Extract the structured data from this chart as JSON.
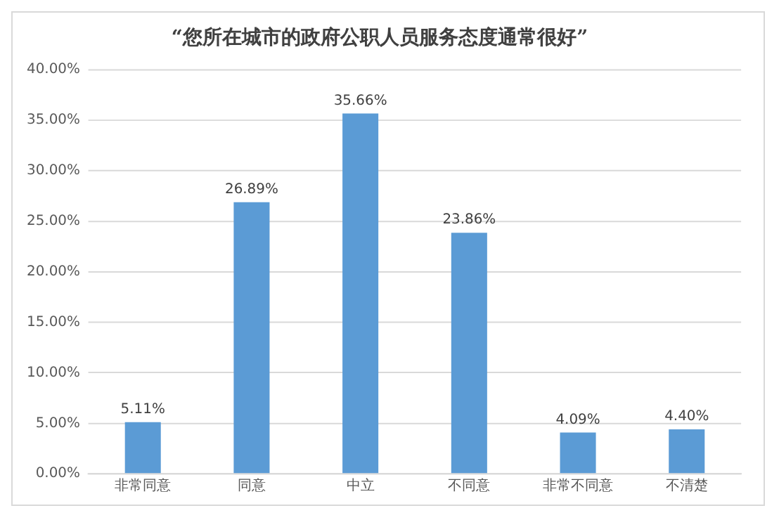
{
  "chart_data": {
    "type": "bar",
    "title": "“您所在城市的政府公职人员服务态度通常很好”",
    "categories": [
      "非常同意",
      "同意",
      "中立",
      "不同意",
      "非常不同意",
      "不清楚"
    ],
    "values": [
      5.11,
      26.89,
      35.66,
      23.86,
      4.09,
      4.4
    ],
    "value_labels": [
      "5.11%",
      "26.89%",
      "35.66%",
      "23.86%",
      "4.09%",
      "4.40%"
    ],
    "color": "#5b9bd5",
    "ylim": [
      0,
      40
    ],
    "yticks": [
      {
        "value": 0,
        "label": "0.00%"
      },
      {
        "value": 5,
        "label": "5.00%"
      },
      {
        "value": 10,
        "label": "10.00%"
      },
      {
        "value": 15,
        "label": "15.00%"
      },
      {
        "value": 20,
        "label": "20.00%"
      },
      {
        "value": 25,
        "label": "25.00%"
      },
      {
        "value": 30,
        "label": "30.00%"
      },
      {
        "value": 35,
        "label": "35.00%"
      },
      {
        "value": 40,
        "label": "40.00%"
      }
    ],
    "grid": "y",
    "legend": false
  }
}
